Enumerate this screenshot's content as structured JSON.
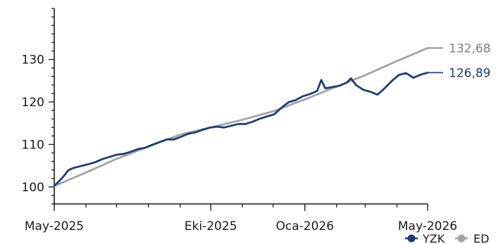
{
  "chart_data": {
    "type": "line",
    "title": "",
    "xlabel": "",
    "ylabel": "",
    "ylim": [
      96,
      142
    ],
    "yticks": [
      100,
      110,
      120,
      130
    ],
    "xticks": [
      "May-2025",
      "Eki-2025",
      "Oca-2026",
      "May-2026"
    ],
    "grid": false,
    "legend_position": "bottom-right",
    "colors": {
      "yzk": "#1c3f7a",
      "ed": "#a3a3a3",
      "axis": "#1a1a1a"
    },
    "series": [
      {
        "name": "YZK",
        "end_label": "126,89",
        "points": [
          [
            "2025-05-01",
            100.3
          ],
          [
            "2025-05-05",
            101.2
          ],
          [
            "2025-05-10",
            102.4
          ],
          [
            "2025-05-15",
            103.8
          ],
          [
            "2025-05-20",
            104.6
          ],
          [
            "2025-05-27",
            104.9
          ],
          [
            "2025-06-03",
            105.2
          ],
          [
            "2025-06-10",
            106.0
          ],
          [
            "2025-06-17",
            106.6
          ],
          [
            "2025-06-24",
            107.0
          ],
          [
            "2025-07-01",
            107.4
          ],
          [
            "2025-07-08",
            107.9
          ],
          [
            "2025-07-15",
            108.3
          ],
          [
            "2025-07-22",
            108.8
          ],
          [
            "2025-07-29",
            109.4
          ],
          [
            "2025-08-05",
            110.0
          ],
          [
            "2025-08-12",
            110.5
          ],
          [
            "2025-08-19",
            111.0
          ],
          [
            "2025-08-26",
            111.3
          ],
          [
            "2025-09-02",
            111.8
          ],
          [
            "2025-09-09",
            112.4
          ],
          [
            "2025-09-16",
            113.0
          ],
          [
            "2025-09-23",
            113.5
          ],
          [
            "2025-09-30",
            113.9
          ],
          [
            "2025-10-07",
            114.0
          ],
          [
            "2025-10-14",
            114.1
          ],
          [
            "2025-10-21",
            114.4
          ],
          [
            "2025-10-28",
            114.7
          ],
          [
            "2025-11-04",
            115.0
          ],
          [
            "2025-11-11",
            115.4
          ],
          [
            "2025-11-18",
            116.0
          ],
          [
            "2025-11-25",
            116.4
          ],
          [
            "2025-12-02",
            117.2
          ],
          [
            "2025-12-09",
            118.6
          ],
          [
            "2025-12-16",
            119.8
          ],
          [
            "2025-12-23",
            120.6
          ],
          [
            "2025-12-30",
            121.4
          ],
          [
            "2026-01-06",
            121.8
          ],
          [
            "2026-01-13",
            122.4
          ],
          [
            "2026-01-17",
            125.3
          ],
          [
            "2026-01-21",
            123.2
          ],
          [
            "2026-01-28",
            123.4
          ],
          [
            "2026-02-04",
            124.0
          ],
          [
            "2026-02-11",
            124.6
          ],
          [
            "2026-02-15",
            125.5
          ],
          [
            "2026-02-20",
            123.8
          ],
          [
            "2026-02-27",
            123.0
          ],
          [
            "2026-03-06",
            122.4
          ],
          [
            "2026-03-13",
            121.6
          ],
          [
            "2026-03-20",
            123.4
          ],
          [
            "2026-03-27",
            125.0
          ],
          [
            "2026-04-03",
            126.3
          ],
          [
            "2026-04-10",
            126.6
          ],
          [
            "2026-04-17",
            125.8
          ],
          [
            "2026-04-24",
            126.4
          ],
          [
            "2026-05-01",
            126.89
          ]
        ]
      },
      {
        "name": "ED",
        "end_label": "132,68",
        "points": [
          [
            "2025-05-01",
            100.2
          ],
          [
            "2025-06-01",
            103.4
          ],
          [
            "2025-07-01",
            106.6
          ],
          [
            "2025-08-01",
            109.5
          ],
          [
            "2025-09-01",
            112.3
          ],
          [
            "2025-10-01",
            114.0
          ],
          [
            "2025-11-01",
            115.8
          ],
          [
            "2025-12-01",
            117.8
          ],
          [
            "2026-01-01",
            120.6
          ],
          [
            "2026-02-01",
            123.6
          ],
          [
            "2026-03-01",
            126.3
          ],
          [
            "2026-04-01",
            129.6
          ],
          [
            "2026-05-01",
            132.68
          ]
        ]
      }
    ]
  }
}
